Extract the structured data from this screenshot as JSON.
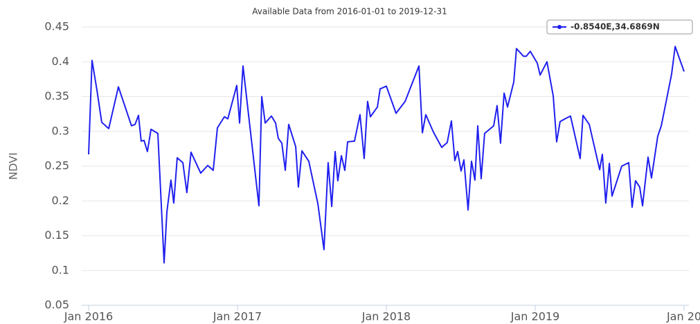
{
  "chart_data": {
    "type": "line",
    "title": "Available Data from 2016-01-01 to 2019-12-31",
    "ylabel": "NDVI",
    "x": [
      2016.0,
      2016.023,
      2016.056,
      2016.088,
      2016.135,
      2016.2,
      2016.288,
      2016.312,
      2016.335,
      2016.353,
      2016.372,
      2016.395,
      2016.419,
      2016.465,
      2016.507,
      2016.526,
      2016.553,
      2016.572,
      2016.595,
      2016.633,
      2016.66,
      2016.688,
      2016.753,
      2016.8,
      2016.837,
      2016.865,
      2016.912,
      2016.935,
      2016.995,
      2017.014,
      2017.037,
      2017.144,
      2017.163,
      2017.186,
      2017.228,
      2017.256,
      2017.274,
      2017.298,
      2017.321,
      2017.344,
      2017.391,
      2017.409,
      2017.433,
      2017.479,
      2017.54,
      2017.581,
      2017.609,
      2017.633,
      2017.656,
      2017.674,
      2017.698,
      2017.721,
      2017.74,
      2017.786,
      2017.823,
      2017.851,
      2017.874,
      2017.893,
      2017.94,
      2017.958,
      2018.0,
      2018.065,
      2018.126,
      2018.219,
      2018.242,
      2018.265,
      2018.316,
      2018.372,
      2018.409,
      2018.437,
      2018.46,
      2018.479,
      2018.502,
      2018.521,
      2018.549,
      2018.572,
      2018.595,
      2018.614,
      2018.637,
      2018.66,
      2018.721,
      2018.744,
      2018.767,
      2018.791,
      2018.814,
      2018.856,
      2018.874,
      2018.921,
      2018.94,
      2018.967,
      2019.014,
      2019.033,
      2019.079,
      2019.121,
      2019.144,
      2019.167,
      2019.209,
      2019.237,
      2019.302,
      2019.321,
      2019.363,
      2019.433,
      2019.451,
      2019.474,
      2019.498,
      2019.516,
      2019.581,
      2019.628,
      2019.651,
      2019.674,
      2019.702,
      2019.721,
      2019.758,
      2019.781,
      2019.8,
      2019.823,
      2019.847,
      2019.916,
      2019.94,
      2020.0
    ],
    "series": [
      {
        "name": "-0.8540E,34.6869N",
        "color": "#1f1fef",
        "values": [
          0.267,
          0.402,
          0.359,
          0.313,
          0.304,
          0.364,
          0.308,
          0.31,
          0.323,
          0.286,
          0.287,
          0.271,
          0.303,
          0.297,
          0.111,
          0.185,
          0.23,
          0.197,
          0.262,
          0.255,
          0.212,
          0.27,
          0.24,
          0.251,
          0.244,
          0.305,
          0.321,
          0.318,
          0.366,
          0.312,
          0.394,
          0.193,
          0.35,
          0.312,
          0.322,
          0.312,
          0.29,
          0.283,
          0.244,
          0.31,
          0.278,
          0.22,
          0.272,
          0.257,
          0.196,
          0.13,
          0.255,
          0.192,
          0.271,
          0.229,
          0.265,
          0.244,
          0.285,
          0.286,
          0.324,
          0.261,
          0.343,
          0.321,
          0.335,
          0.361,
          0.365,
          0.326,
          0.343,
          0.394,
          0.298,
          0.324,
          0.299,
          0.277,
          0.284,
          0.315,
          0.258,
          0.271,
          0.243,
          0.259,
          0.187,
          0.257,
          0.23,
          0.308,
          0.232,
          0.297,
          0.308,
          0.337,
          0.283,
          0.355,
          0.335,
          0.371,
          0.419,
          0.408,
          0.408,
          0.415,
          0.398,
          0.381,
          0.4,
          0.351,
          0.285,
          0.314,
          0.319,
          0.322,
          0.261,
          0.323,
          0.31,
          0.245,
          0.267,
          0.197,
          0.254,
          0.207,
          0.25,
          0.255,
          0.191,
          0.229,
          0.22,
          0.193,
          0.263,
          0.233,
          0.26,
          0.293,
          0.308,
          0.382,
          0.422,
          0.386
        ]
      }
    ],
    "xlim": [
      2016,
      2020
    ],
    "xticks": [
      {
        "value": 2016,
        "label": "Jan 2016"
      },
      {
        "value": 2017,
        "label": "Jan 2017"
      },
      {
        "value": 2018,
        "label": "Jan 2018"
      },
      {
        "value": 2019,
        "label": "Jan 2019"
      },
      {
        "value": 2020,
        "label": "Jan 20"
      }
    ],
    "ylim": [
      0.05,
      0.45
    ],
    "yticks": [
      0.05,
      0.1,
      0.15,
      0.2,
      0.25,
      0.3,
      0.35,
      0.4,
      0.45
    ],
    "grid": true,
    "legend": "upper right"
  }
}
